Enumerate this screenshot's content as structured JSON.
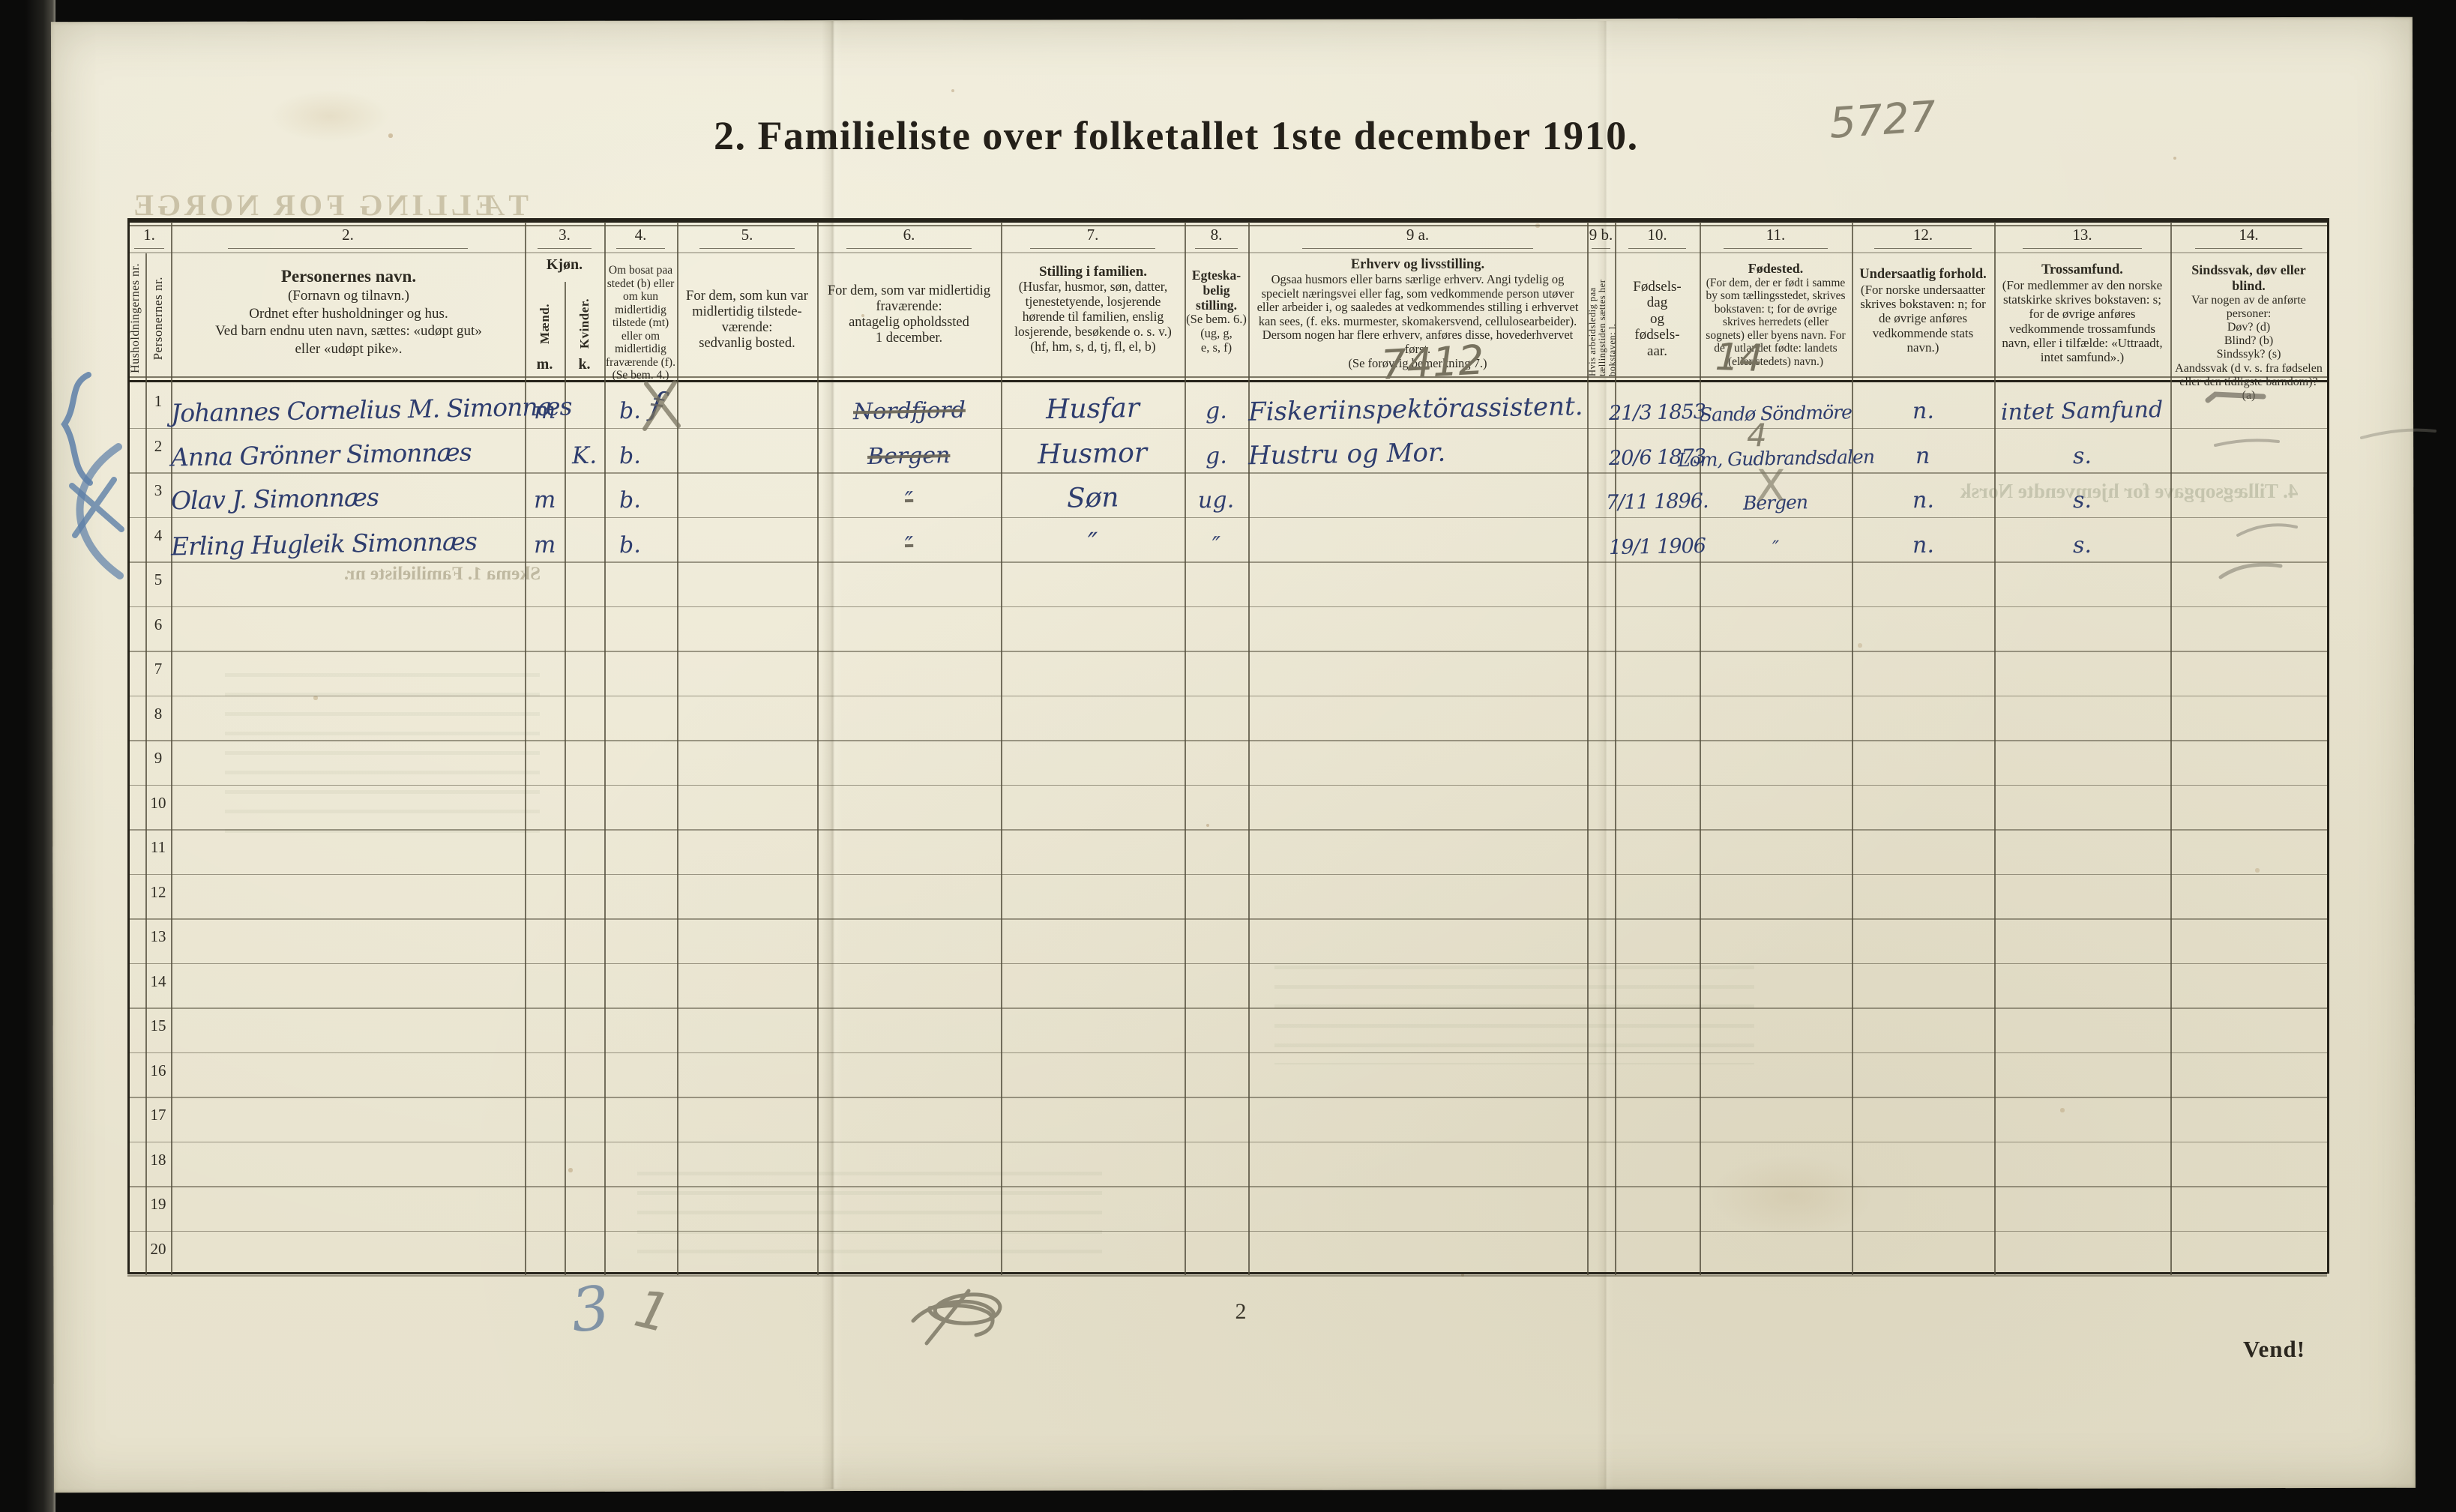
{
  "page": {
    "title": "2.  Familieliste over folketallet 1ste december 1910.",
    "page_number": "2",
    "turn_note": "Vend!"
  },
  "annotations": {
    "serial": "5727",
    "occupation_code": "7412",
    "birthplace_code": "14",
    "birthplace_row2_code": "4",
    "birthplace_row3_mark": "X",
    "tally_main": "3",
    "tally_slash": "1",
    "health_pencil_marks": [
      "dash",
      "dash",
      "curve",
      "curve"
    ]
  },
  "ghost": {
    "header_mirrored": "TÆLLING FOR NORGE",
    "footer_mirrored": "Skema 1.  Familieliste nr.",
    "right_mirrored": "4. Tillægsopgave for hjemvendte Norsk"
  },
  "table": {
    "header": {
      "nums": [
        "1.",
        "2.",
        "3.",
        "4.",
        "5.",
        "6.",
        "7.",
        "8.",
        "9 a.",
        "9 b.",
        "10.",
        "11.",
        "12.",
        "13.",
        "14."
      ],
      "household_no": "Husholdningernes nr.",
      "person_no": "Personernes nr.",
      "name_title": "Personernes navn.",
      "name_text": "(Fornavn og tilnavn.)\nOrdnet efter husholdninger og hus.\nVed barn endnu uten navn, sættes: «udøpt gut»\neller «udøpt pike».",
      "sex_title": "Kjøn.",
      "sex_male": "Mænd.",
      "sex_female": "Kvinder.",
      "sex_male_abbr": "m.",
      "sex_female_abbr": "k.",
      "resident": "Om bosat paa stedet (b) eller om kun midler­tidig tilstede (mt) eller om midler­tidig fra­værende (f). (Se bem. 4.)",
      "usual_residence": "For dem, som kun var midlertidig tilstede­værende:\nsedvanlig bosted.",
      "away_location": "For dem, som var midlertidig fraværende:\nantagelig opholdssted\n1 december.",
      "family_title": "Stilling i familien.",
      "family_text": "(Husfar, husmor, søn, datter, tjenestetyende, lo­sjerende hørende til familien, enslig losjerende, besøkende o. s. v.)\n(hf, hm, s, d, tj, fl, el, b)",
      "marital_title": "Egteska­belig stilling.",
      "marital_text": "(Se bem. 6.)\n(ug, g,\ne, s, f)",
      "occupation_title": "Erhverv og livsstilling.",
      "occupation_text": "Ogsaa husmors eller barns særlige erhverv. Angi tydelig og specielt næringsvei eller fag, som vedkommende person utøver eller arbeider i, og saaledes at vedkommendes stilling i erhvervet kan sees, (f. eks. murmester, skomakersvend, cellulose­arbeider). Dersom nogen har flere erhverv, anføres disse, hovederhvervet først.\n(Se forøvrig bemerkning 7.)",
      "unemployed": "Hvis arbeidsledig paa tællingstiden sættes her bokstaven: l.",
      "birth_date": "Fødsels-\ndag\nog\nfødsels-\naar.",
      "birthplace_title": "Fødested.",
      "birthplace_text": "(For dem, der er født i samme by som tællingsstedet, skrives bokstaven: t; for de øvrige skrives herredets (eller sognets) eller byens navn. For de i utlandet fødte: landets (eller stedets) navn.)",
      "citizen_title": "Undersaatlig forhold.",
      "citizen_text": "(For norske under­saatter skrives bokstaven: n; for de øvrige anføres vedkom­mende stats navn.)",
      "religion_title": "Trossamfund.",
      "religion_text": "(For medlemmer av den norske statskirke skrives bokstaven: s; for de øvrige anføres vedkommende tros­samfunds navn, eller i til­fælde: «Uttraadt, intet samfund».)",
      "health_title": "Sindssvak, døv eller blind.",
      "health_text": "Var nogen av de anførte personer:\nDøv?  (d)\nBlind?  (b)\nSindssyk?  (s)\nAandssvak (d v. s. fra fødselen eller den tid­ligste barndom)?  (a)"
    },
    "rows": [
      {
        "no": "1",
        "name": "Johannes Cornelius M. Simonnæs",
        "sex_m": "m",
        "resident": "b.",
        "resident_extra": "f",
        "away_location": "Nordfjord",
        "away_struck": true,
        "family_position": "Husfar",
        "marital_status": "g.",
        "occupation": "Fiskeriinspektörassistent.",
        "birth_date": "21/3 1853",
        "birth_place": "Sandø Söndmöre",
        "citizenship": "n.",
        "religion": "intet Samfund"
      },
      {
        "no": "2",
        "name": "Anna Grönner Simonnæs",
        "sex_k": "K.",
        "resident": "b.",
        "away_location": "Bergen",
        "away_struck": true,
        "family_position": "Husmor",
        "marital_status": "g.",
        "occupation": "Hustru og Mor.",
        "birth_date": "20/6 1873",
        "birth_place": "Lom, Gudbrandsdalen",
        "citizenship": "n",
        "religion": "s."
      },
      {
        "no": "3",
        "name": "Olav J. Simonnæs",
        "sex_m": "m",
        "resident": "b.",
        "away_location": "″",
        "away_struck": true,
        "family_position": "Søn",
        "marital_status": "ug.",
        "birth_date": "7/11 1896.",
        "birth_place": "Bergen",
        "citizenship": "n.",
        "religion": "s."
      },
      {
        "no": "4",
        "name": "Erling Hugleik Simonnæs",
        "sex_m": "m",
        "resident": "b.",
        "away_location": "″",
        "away_struck": true,
        "family_position": "″",
        "marital_status": "″",
        "birth_date": "19/1 1906",
        "birth_place": "″",
        "citizenship": "n.",
        "religion": "s."
      },
      {
        "no": "5"
      },
      {
        "no": "6"
      },
      {
        "no": "7"
      },
      {
        "no": "8"
      },
      {
        "no": "9"
      },
      {
        "no": "10"
      },
      {
        "no": "11"
      },
      {
        "no": "12"
      },
      {
        "no": "13"
      },
      {
        "no": "14"
      },
      {
        "no": "15"
      },
      {
        "no": "16"
      },
      {
        "no": "17"
      },
      {
        "no": "18"
      },
      {
        "no": "19"
      },
      {
        "no": "20"
      }
    ]
  }
}
